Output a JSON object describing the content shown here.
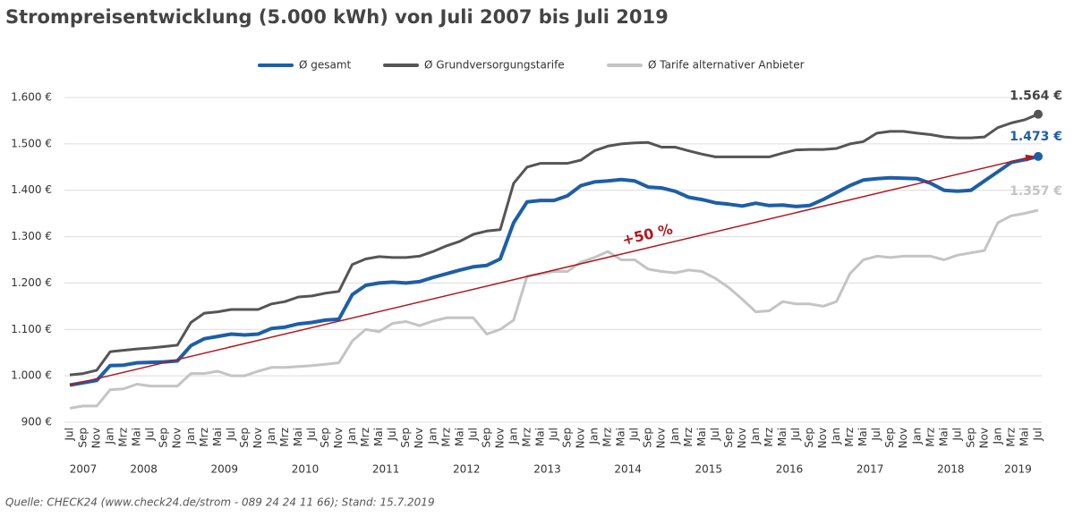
{
  "chart_data": {
    "type": "line",
    "title": "Strompreisentwicklung (5.000 kWh) von Juli 2007 bis Juli 2019",
    "source": "Quelle: CHECK24 (www.check24.de/strom - 089 24 24 11 66); Stand: 15.7.2019",
    "categories": [
      "Jul",
      "Sep",
      "Nov",
      "Jan",
      "Mrz",
      "Mai",
      "Jul",
      "Sep",
      "Nov",
      "Jan",
      "Mrz",
      "Mai",
      "Jul",
      "Sep",
      "Nov",
      "Jan",
      "Mrz",
      "Mai",
      "Jul",
      "Sep",
      "Nov",
      "Jan",
      "Mrz",
      "Mai",
      "Jul",
      "Sep",
      "Nov",
      "Jan",
      "Mrz",
      "Mai",
      "Jul",
      "Sep",
      "Nov",
      "Jan",
      "Mrz",
      "Mai",
      "Jul",
      "Sep",
      "Nov",
      "Jan",
      "Mrz",
      "Mai",
      "Jul",
      "Sep",
      "Nov",
      "Jan",
      "Mrz",
      "Mai",
      "Jul",
      "Sep",
      "Nov",
      "Jan",
      "Mrz",
      "Mai",
      "Jul",
      "Sep",
      "Nov",
      "Jan",
      "Mrz",
      "Mai",
      "Jul",
      "Sep",
      "Nov",
      "Jan",
      "Mrz",
      "Mai",
      "Jul",
      "Sep",
      "Nov",
      "Jan",
      "Mrz",
      "Mai",
      "Jul"
    ],
    "x_groups": [
      "2007",
      "2008",
      "2009",
      "2010",
      "2011",
      "2012",
      "2013",
      "2014",
      "2015",
      "2016",
      "2017",
      "2018",
      "2019"
    ],
    "series": [
      {
        "name": "Ø gesamt",
        "color": "#1d5ea8",
        "end_label": "1.473 €",
        "values": [
          980,
          985,
          990,
          1022,
          1023,
          1028,
          1029,
          1030,
          1032,
          1065,
          1080,
          1085,
          1090,
          1088,
          1090,
          1102,
          1105,
          1112,
          1115,
          1120,
          1122,
          1175,
          1195,
          1200,
          1202,
          1200,
          1203,
          1212,
          1220,
          1228,
          1235,
          1238,
          1252,
          1330,
          1375,
          1378,
          1378,
          1388,
          1410,
          1418,
          1420,
          1423,
          1420,
          1407,
          1405,
          1398,
          1385,
          1380,
          1373,
          1370,
          1366,
          1372,
          1367,
          1368,
          1365,
          1367,
          1380,
          1395,
          1410,
          1422,
          1425,
          1427,
          1426,
          1425,
          1415,
          1400,
          1398,
          1400,
          1420,
          1440,
          1460,
          1466,
          1473
        ]
      },
      {
        "name": "Ø Grundversorgungstarife",
        "color": "#555555",
        "end_label": "1.564 €",
        "values": [
          1002,
          1005,
          1012,
          1052,
          1055,
          1058,
          1060,
          1063,
          1066,
          1115,
          1135,
          1138,
          1143,
          1143,
          1143,
          1155,
          1160,
          1170,
          1172,
          1178,
          1182,
          1240,
          1252,
          1257,
          1255,
          1255,
          1258,
          1268,
          1280,
          1290,
          1305,
          1312,
          1315,
          1415,
          1450,
          1458,
          1458,
          1458,
          1465,
          1485,
          1495,
          1500,
          1502,
          1503,
          1493,
          1493,
          1485,
          1478,
          1472,
          1472,
          1472,
          1472,
          1472,
          1480,
          1487,
          1488,
          1488,
          1490,
          1500,
          1505,
          1523,
          1527,
          1527,
          1523,
          1520,
          1515,
          1513,
          1513,
          1515,
          1535,
          1545,
          1552,
          1564
        ]
      },
      {
        "name": "Ø Tarife alternativer Anbieter",
        "color": "#c4c4c4",
        "end_label": "1.357 €",
        "values": [
          930,
          935,
          935,
          970,
          972,
          982,
          978,
          978,
          978,
          1005,
          1005,
          1010,
          1000,
          1000,
          1010,
          1018,
          1018,
          1020,
          1022,
          1025,
          1028,
          1075,
          1100,
          1095,
          1113,
          1117,
          1108,
          1118,
          1125,
          1125,
          1125,
          1090,
          1100,
          1120,
          1215,
          1220,
          1225,
          1225,
          1245,
          1255,
          1268,
          1250,
          1250,
          1230,
          1225,
          1222,
          1228,
          1225,
          1210,
          1190,
          1165,
          1138,
          1140,
          1160,
          1155,
          1155,
          1150,
          1160,
          1220,
          1250,
          1258,
          1255,
          1258,
          1258,
          1258,
          1250,
          1260,
          1265,
          1270,
          1330,
          1345,
          1350,
          1357
        ]
      }
    ],
    "annotation": {
      "text": "+50 %",
      "color": "#b01820"
    },
    "ylim": [
      900,
      1600
    ],
    "yticks": [
      {
        "value": 900,
        "label": "900 €"
      },
      {
        "value": 1000,
        "label": "1.000 €"
      },
      {
        "value": 1100,
        "label": "1.100 €"
      },
      {
        "value": 1200,
        "label": "1.200 €"
      },
      {
        "value": 1300,
        "label": "1.300 €"
      },
      {
        "value": 1400,
        "label": "1.400 €"
      },
      {
        "value": 1500,
        "label": "1.500 €"
      },
      {
        "value": 1600,
        "label": "1.600 €"
      }
    ],
    "grid": true
  }
}
